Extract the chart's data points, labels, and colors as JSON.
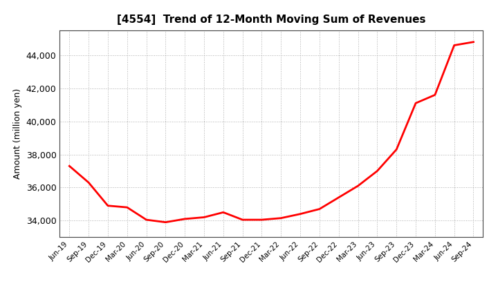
{
  "title": "[4554]  Trend of 12-Month Moving Sum of Revenues",
  "ylabel": "Amount (million yen)",
  "line_color": "#ff0000",
  "line_width": 2.0,
  "background_color": "#ffffff",
  "grid_color": "#999999",
  "ylim": [
    33000,
    45500
  ],
  "yticks": [
    34000,
    36000,
    38000,
    40000,
    42000,
    44000
  ],
  "x_labels": [
    "Jun-19",
    "Sep-19",
    "Dec-19",
    "Mar-20",
    "Jun-20",
    "Sep-20",
    "Dec-20",
    "Mar-21",
    "Jun-21",
    "Sep-21",
    "Dec-21",
    "Mar-22",
    "Jun-22",
    "Sep-22",
    "Dec-22",
    "Mar-23",
    "Jun-23",
    "Sep-23",
    "Dec-23",
    "Mar-24",
    "Jun-24",
    "Sep-24"
  ],
  "y_values": [
    37300,
    36300,
    34900,
    34800,
    34050,
    33900,
    34100,
    34200,
    34500,
    34050,
    34050,
    34150,
    34400,
    34700,
    35400,
    36100,
    37000,
    38300,
    41100,
    41600,
    44600,
    44800
  ]
}
